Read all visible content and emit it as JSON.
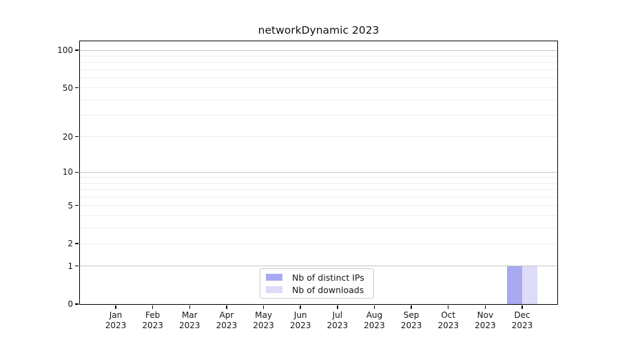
{
  "chart_data": {
    "type": "bar",
    "title": "networkDynamic 2023",
    "x_categories": [
      "Jan",
      "Feb",
      "Mar",
      "Apr",
      "May",
      "Jun",
      "Jul",
      "Aug",
      "Sep",
      "Oct",
      "Nov",
      "Dec"
    ],
    "x_year": "2023",
    "series": [
      {
        "name": "Nb of distinct IPs",
        "color": "#a9a9f2",
        "values": [
          0,
          0,
          0,
          0,
          0,
          0,
          0,
          0,
          0,
          0,
          0,
          1
        ]
      },
      {
        "name": "Nb of downloads",
        "color": "#dcdcf7",
        "values": [
          0,
          0,
          0,
          0,
          0,
          0,
          0,
          0,
          0,
          0,
          0,
          1
        ]
      }
    ],
    "yscale": "log1p",
    "ylim": [
      0,
      118
    ],
    "y_ticks": [
      0,
      1,
      2,
      5,
      10,
      20,
      50,
      100
    ],
    "y_grid_strong": [
      1,
      10,
      100
    ],
    "y_grid_faint": [
      2,
      3,
      4,
      5,
      6,
      7,
      8,
      9,
      20,
      30,
      40,
      50,
      60,
      70,
      80,
      90
    ],
    "grid": "horizontal",
    "legend_position": "lower center",
    "colors": {
      "axis": "#000000",
      "grid_strong": "#c6c6c6",
      "grid_faint": "#ededed",
      "background": "#ffffff",
      "text": "#151515"
    }
  }
}
